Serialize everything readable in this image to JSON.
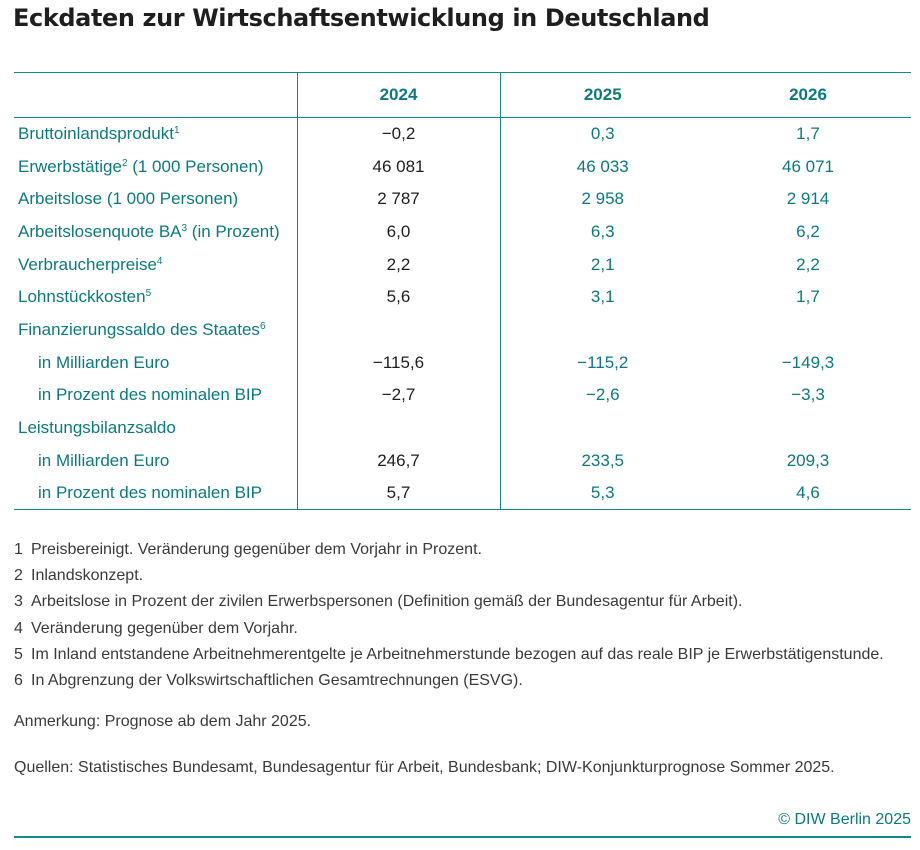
{
  "title": "Eckdaten zur Wirtschaftsentwicklung in Deutschland",
  "years": [
    "2024",
    "2025",
    "2026"
  ],
  "rows": [
    {
      "label": "Bruttoinlandsprodukt",
      "sup": "1",
      "values": [
        "−0,2",
        "0,3",
        "1,7"
      ]
    },
    {
      "label": "Erwerbstätige",
      "sup": "2",
      "suffix": " (1 000 Personen)",
      "values": [
        "46 081",
        "46 033",
        "46 071"
      ]
    },
    {
      "label": "Arbeitslose (1 000 Personen)",
      "values": [
        "2 787",
        "2 958",
        "2 914"
      ]
    },
    {
      "label": "Arbeitslosenquote BA",
      "sup": "3",
      "suffix": " (in Prozent)",
      "values": [
        "6,0",
        "6,3",
        "6,2"
      ]
    },
    {
      "label": "Verbraucherpreise",
      "sup": "4",
      "values": [
        "2,2",
        "2,1",
        "2,2"
      ]
    },
    {
      "label": "Lohnstückkosten",
      "sup": "5",
      "values": [
        "5,6",
        "3,1",
        "1,7"
      ]
    },
    {
      "label": "Finanzierungssaldo des Staates",
      "sup": "6",
      "values": [
        "",
        "",
        ""
      ]
    },
    {
      "label": "in Milliarden Euro",
      "indent": true,
      "values": [
        "−115,6",
        "−115,2",
        "−149,3"
      ]
    },
    {
      "label": "in Prozent des nominalen BIP",
      "indent": true,
      "values": [
        "−2,7",
        "−2,6",
        "−3,3"
      ]
    },
    {
      "label": "Leistungsbilanzsaldo",
      "values": [
        "",
        "",
        ""
      ]
    },
    {
      "label": "in Milliarden Euro",
      "indent": true,
      "values": [
        "246,7",
        "233,5",
        "209,3"
      ]
    },
    {
      "label": "in Prozent des nominalen BIP",
      "indent": true,
      "values": [
        "5,7",
        "5,3",
        "4,6"
      ]
    }
  ],
  "footnotes": [
    {
      "num": "1",
      "text": "Preisbereinigt. Veränderung gegenüber dem Vorjahr in Prozent."
    },
    {
      "num": "2",
      "text": "Inlandskonzept."
    },
    {
      "num": "3",
      "text": "Arbeitslose in Prozent der zivilen Erwerbspersonen (Definition gemäß der Bundesagentur für Arbeit)."
    },
    {
      "num": "4",
      "text": "Veränderung gegenüber dem Vorjahr."
    },
    {
      "num": "5",
      "text": "Im Inland entstandene Arbeitnehmerentgelte je Arbeitnehmerstunde bezogen auf das reale BIP je Erwerbstätigenstunde."
    },
    {
      "num": "6",
      "text": "In Abgrenzung der Volkswirtschaftlichen Gesamtrechnungen (ESVG)."
    }
  ],
  "remark": "Anmerkung: Prognose ab dem Jahr 2025.",
  "sources": "Quellen: Statistisches Bundesamt, Bundesagentur für Arbeit, Bundesbank; DIW-Konjunkturprognose Sommer 2025.",
  "copyright": "© DIW Berlin 2025"
}
